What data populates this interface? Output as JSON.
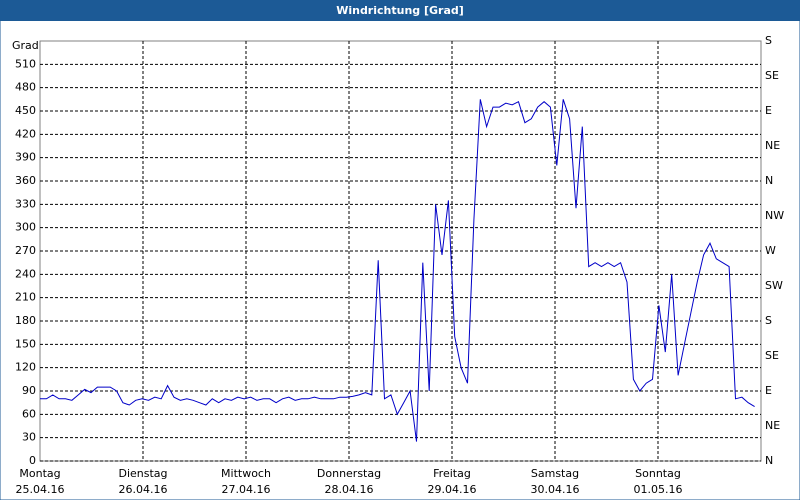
{
  "chart_data": {
    "type": "line",
    "title": "Windrichtung [Grad]",
    "y_label": "Grad",
    "days": [
      {
        "name": "Montag",
        "date": "25.04.16"
      },
      {
        "name": "Dienstag",
        "date": "26.04.16"
      },
      {
        "name": "Mittwoch",
        "date": "27.04.16"
      },
      {
        "name": "Donnerstag",
        "date": "28.04.16"
      },
      {
        "name": "Freitag",
        "date": "29.04.16"
      },
      {
        "name": "Samstag",
        "date": "30.04.16"
      },
      {
        "name": "Sonntag",
        "date": "01.05.16"
      }
    ],
    "series": [
      {
        "color": "#0000c8",
        "values": [
          80,
          80,
          85,
          80,
          80,
          78,
          85,
          92,
          88,
          95,
          95,
          95,
          90,
          75,
          72,
          78,
          80,
          78,
          82,
          80,
          97,
          82,
          78,
          80,
          78,
          75,
          72,
          80,
          75,
          80,
          78,
          82,
          80,
          82,
          78,
          80,
          80,
          75,
          80,
          82,
          78,
          80,
          80,
          82,
          80,
          80,
          80,
          82,
          82,
          83,
          85,
          88,
          85,
          258,
          80,
          85,
          60,
          75,
          90,
          25,
          255,
          90,
          330,
          265,
          335,
          160,
          120,
          100,
          310,
          465,
          430,
          455,
          455,
          460,
          458,
          462,
          435,
          440,
          455,
          462,
          455,
          380,
          465,
          440,
          325,
          430,
          250,
          255,
          250,
          255,
          250,
          255,
          230,
          105,
          90,
          100,
          105,
          200,
          140,
          240,
          110,
          150,
          190,
          230,
          265,
          280,
          260,
          255,
          250,
          80,
          82,
          75,
          70
        ]
      }
    ],
    "ylim": [
      0,
      540
    ],
    "yticks": [
      0,
      30,
      60,
      90,
      120,
      150,
      180,
      210,
      240,
      270,
      300,
      330,
      360,
      390,
      420,
      450,
      480,
      510
    ],
    "y2lim": [
      0,
      540
    ],
    "y2ticks": [
      {
        "value": 0,
        "label": "N"
      },
      {
        "value": 45,
        "label": "NE"
      },
      {
        "value": 90,
        "label": "E"
      },
      {
        "value": 135,
        "label": "SE"
      },
      {
        "value": 180,
        "label": "S"
      },
      {
        "value": 225,
        "label": "SW"
      },
      {
        "value": 270,
        "label": "W"
      },
      {
        "value": 315,
        "label": "NW"
      },
      {
        "value": 360,
        "label": "N"
      },
      {
        "value": 405,
        "label": "NE"
      },
      {
        "value": 450,
        "label": "E"
      },
      {
        "value": 495,
        "label": "SE"
      },
      {
        "value": 540,
        "label": "S"
      }
    ],
    "grid": true
  }
}
